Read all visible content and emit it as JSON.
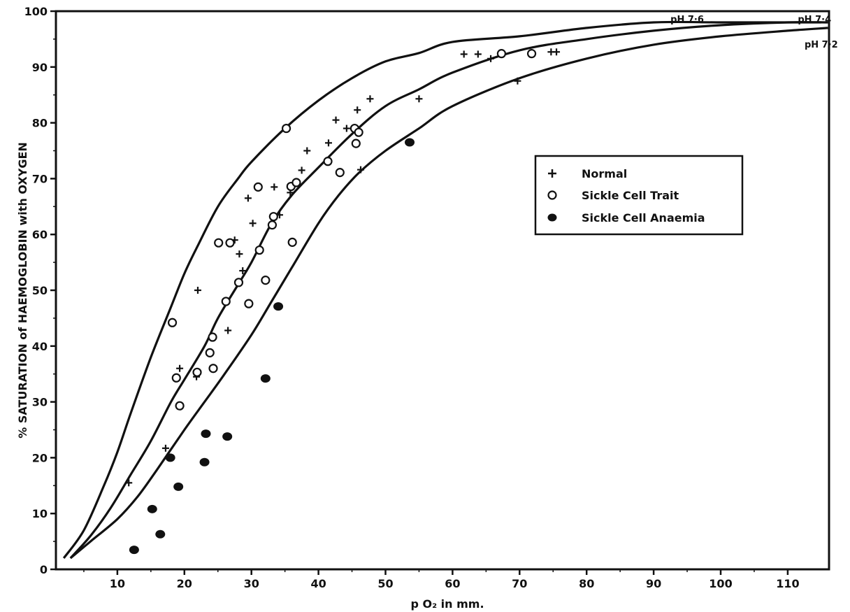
{
  "chart_data": {
    "type": "scatter",
    "xlabel": "p O₂ in mm.",
    "ylabel": "% SATURATION of HAEMOGLOBIN with OXYGEN",
    "xlim": [
      0,
      118
    ],
    "ylim": [
      0,
      100
    ],
    "x_ticks": [
      10,
      20,
      30,
      40,
      50,
      60,
      70,
      80,
      90,
      100,
      110
    ],
    "y_ticks": [
      0,
      10,
      20,
      30,
      40,
      50,
      60,
      70,
      80,
      90,
      100
    ],
    "grid": false,
    "legend": {
      "position": "right",
      "entries": [
        {
          "label": "Normal",
          "marker": "plus"
        },
        {
          "label": "Sickle Cell Trait",
          "marker": "open-circle"
        },
        {
          "label": "Sickle Cell Anaemia",
          "marker": "filled-circle"
        }
      ]
    },
    "curves": [
      {
        "label": "pH 7·6",
        "label_x": 95,
        "label_y": 98.5,
        "points": [
          [
            2,
            2
          ],
          [
            5,
            7
          ],
          [
            8,
            15
          ],
          [
            10,
            21
          ],
          [
            12,
            28
          ],
          [
            15,
            38
          ],
          [
            18,
            47
          ],
          [
            20,
            53
          ],
          [
            22,
            58
          ],
          [
            25,
            65
          ],
          [
            28,
            70
          ],
          [
            30,
            73
          ],
          [
            35,
            79
          ],
          [
            40,
            84
          ],
          [
            45,
            88
          ],
          [
            50,
            91
          ],
          [
            55,
            92.5
          ],
          [
            60,
            94.5
          ],
          [
            70,
            95.5
          ],
          [
            80,
            97
          ],
          [
            90,
            98
          ],
          [
            100,
            98
          ],
          [
            110,
            98
          ],
          [
            115,
            98
          ]
        ]
      },
      {
        "label": "pH 7·4",
        "label_x": 114,
        "label_y": 98.5,
        "points": [
          [
            3,
            2
          ],
          [
            6,
            6
          ],
          [
            9,
            11
          ],
          [
            12,
            17
          ],
          [
            15,
            23
          ],
          [
            18,
            30
          ],
          [
            20,
            34
          ],
          [
            23,
            40
          ],
          [
            25,
            45
          ],
          [
            28,
            51
          ],
          [
            30,
            55
          ],
          [
            33,
            62
          ],
          [
            36,
            67
          ],
          [
            40,
            72
          ],
          [
            45,
            78
          ],
          [
            50,
            83
          ],
          [
            55,
            86
          ],
          [
            60,
            89
          ],
          [
            70,
            93
          ],
          [
            80,
            95
          ],
          [
            90,
            96.5
          ],
          [
            100,
            97.5
          ],
          [
            110,
            98
          ],
          [
            116,
            98
          ]
        ]
      },
      {
        "label": "pH 7·2",
        "label_x": 115,
        "label_y": 94,
        "points": [
          [
            3,
            2
          ],
          [
            6,
            5
          ],
          [
            10,
            9
          ],
          [
            13,
            13
          ],
          [
            16,
            18
          ],
          [
            20,
            25
          ],
          [
            23,
            30
          ],
          [
            26,
            35
          ],
          [
            30,
            42
          ],
          [
            33,
            48
          ],
          [
            36,
            54
          ],
          [
            40,
            62
          ],
          [
            43,
            67
          ],
          [
            46,
            71
          ],
          [
            50,
            75
          ],
          [
            55,
            79
          ],
          [
            60,
            83
          ],
          [
            70,
            88
          ],
          [
            80,
            91.5
          ],
          [
            90,
            94
          ],
          [
            100,
            95.5
          ],
          [
            110,
            96.5
          ],
          [
            116,
            97
          ]
        ]
      }
    ],
    "series": [
      {
        "name": "Normal",
        "marker": "plus",
        "points": [
          [
            11.7,
            15.5
          ],
          [
            17.2,
            21.7
          ],
          [
            19.3,
            36
          ],
          [
            21.8,
            34.5
          ],
          [
            22,
            50
          ],
          [
            26.5,
            42.8
          ],
          [
            27.5,
            59
          ],
          [
            28.2,
            56.5
          ],
          [
            28.7,
            53.5
          ],
          [
            29.5,
            66.5
          ],
          [
            30.2,
            62
          ],
          [
            33.4,
            68.5
          ],
          [
            34.2,
            63.5
          ],
          [
            35.8,
            67.5
          ],
          [
            37.5,
            71.5
          ],
          [
            38.3,
            75
          ],
          [
            41.5,
            76.4
          ],
          [
            42.6,
            80.5
          ],
          [
            44.2,
            79
          ],
          [
            45.8,
            82.3
          ],
          [
            47.7,
            84.3
          ],
          [
            46.3,
            71.6
          ],
          [
            55,
            84.3
          ],
          [
            61.7,
            92.3
          ],
          [
            63.8,
            92.3
          ],
          [
            65.7,
            91.5
          ],
          [
            69.7,
            87.5
          ],
          [
            74.7,
            92.7
          ],
          [
            75.5,
            92.7
          ]
        ]
      },
      {
        "name": "Sickle Cell Trait",
        "marker": "open-circle",
        "points": [
          [
            18.2,
            44.2
          ],
          [
            18.8,
            34.3
          ],
          [
            19.3,
            29.3
          ],
          [
            21.9,
            35.3
          ],
          [
            23.8,
            38.8
          ],
          [
            24.2,
            41.6
          ],
          [
            24.3,
            36
          ],
          [
            25.1,
            58.5
          ],
          [
            26.2,
            48
          ],
          [
            26.8,
            58.5
          ],
          [
            28.1,
            51.4
          ],
          [
            29.6,
            47.6
          ],
          [
            31,
            68.5
          ],
          [
            31.2,
            57.2
          ],
          [
            32.1,
            51.8
          ],
          [
            33.1,
            61.7
          ],
          [
            33.3,
            63.2
          ],
          [
            35.2,
            79
          ],
          [
            35.9,
            68.6
          ],
          [
            36.1,
            58.6
          ],
          [
            36.7,
            69.3
          ],
          [
            41.4,
            73.1
          ],
          [
            43.2,
            71.1
          ],
          [
            45.4,
            79
          ],
          [
            45.6,
            76.3
          ],
          [
            46,
            78.3
          ],
          [
            67.3,
            92.4
          ],
          [
            71.8,
            92.4
          ]
        ]
      },
      {
        "name": "Sickle Cell Anaemia",
        "marker": "filled-circle",
        "points": [
          [
            12.5,
            3.5
          ],
          [
            15.2,
            10.8
          ],
          [
            16.4,
            6.3
          ],
          [
            17.9,
            20
          ],
          [
            19.1,
            14.8
          ],
          [
            23,
            19.2
          ],
          [
            23.2,
            24.3
          ],
          [
            26.4,
            23.8
          ],
          [
            32.1,
            34.2
          ],
          [
            34,
            47.1
          ],
          [
            53.6,
            76.5
          ]
        ]
      }
    ]
  }
}
